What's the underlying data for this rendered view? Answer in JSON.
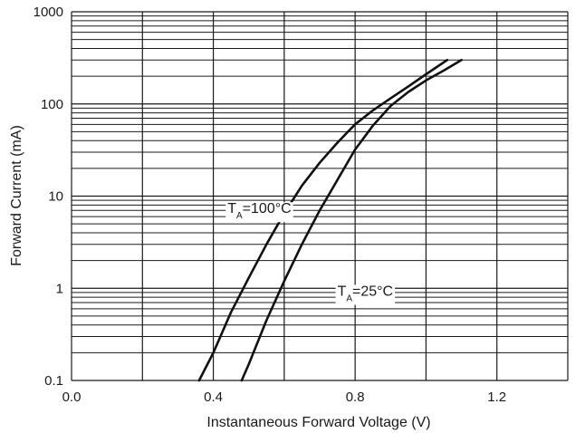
{
  "chart_data": {
    "type": "line",
    "title": "",
    "xlabel": "Instantaneous Forward Voltage (V)",
    "ylabel": "Forward Current (mA)",
    "x_scale": "linear",
    "y_scale": "log",
    "xlim": [
      0.0,
      1.4
    ],
    "ylim": [
      0.1,
      1000
    ],
    "grid": true,
    "x_ticks": [
      {
        "value": 0.0,
        "label": "0.0"
      },
      {
        "value": 0.4,
        "label": "0.4"
      },
      {
        "value": 0.8,
        "label": "0.8"
      },
      {
        "value": 1.2,
        "label": "1.2"
      }
    ],
    "x_grid_values": [
      0.0,
      0.2,
      0.4,
      0.6,
      0.8,
      1.0,
      1.2,
      1.4
    ],
    "y_ticks": [
      {
        "value": 0.1,
        "label": "0.1"
      },
      {
        "value": 1,
        "label": "1"
      },
      {
        "value": 10,
        "label": "10"
      },
      {
        "value": 100,
        "label": "100"
      },
      {
        "value": 1000,
        "label": "1000"
      }
    ],
    "series": [
      {
        "name": "TA=100°C",
        "x": [
          0.36,
          0.4,
          0.45,
          0.5,
          0.55,
          0.6,
          0.65,
          0.7,
          0.75,
          0.8,
          0.85,
          0.9,
          0.95,
          1.0,
          1.06
        ],
        "y": [
          0.1,
          0.2,
          0.55,
          1.3,
          3.0,
          6.5,
          13,
          23,
          38,
          60,
          85,
          115,
          155,
          210,
          300
        ]
      },
      {
        "name": "TA=25°C",
        "x": [
          0.48,
          0.5,
          0.55,
          0.6,
          0.65,
          0.7,
          0.75,
          0.8,
          0.85,
          0.9,
          0.95,
          1.0,
          1.05,
          1.1
        ],
        "y": [
          0.1,
          0.15,
          0.45,
          1.2,
          3.0,
          7.0,
          15,
          32,
          58,
          95,
          135,
          180,
          230,
          300
        ]
      }
    ],
    "annotations": [
      {
        "series": "TA=100°C",
        "main": "T",
        "sub": "A",
        "text": "=100°C",
        "at_x": 0.44,
        "at_y": 7.5
      },
      {
        "series": "TA=25°C",
        "main": "T",
        "sub": "A",
        "text": "=25°C",
        "at_x": 0.75,
        "at_y": 0.95
      }
    ]
  }
}
